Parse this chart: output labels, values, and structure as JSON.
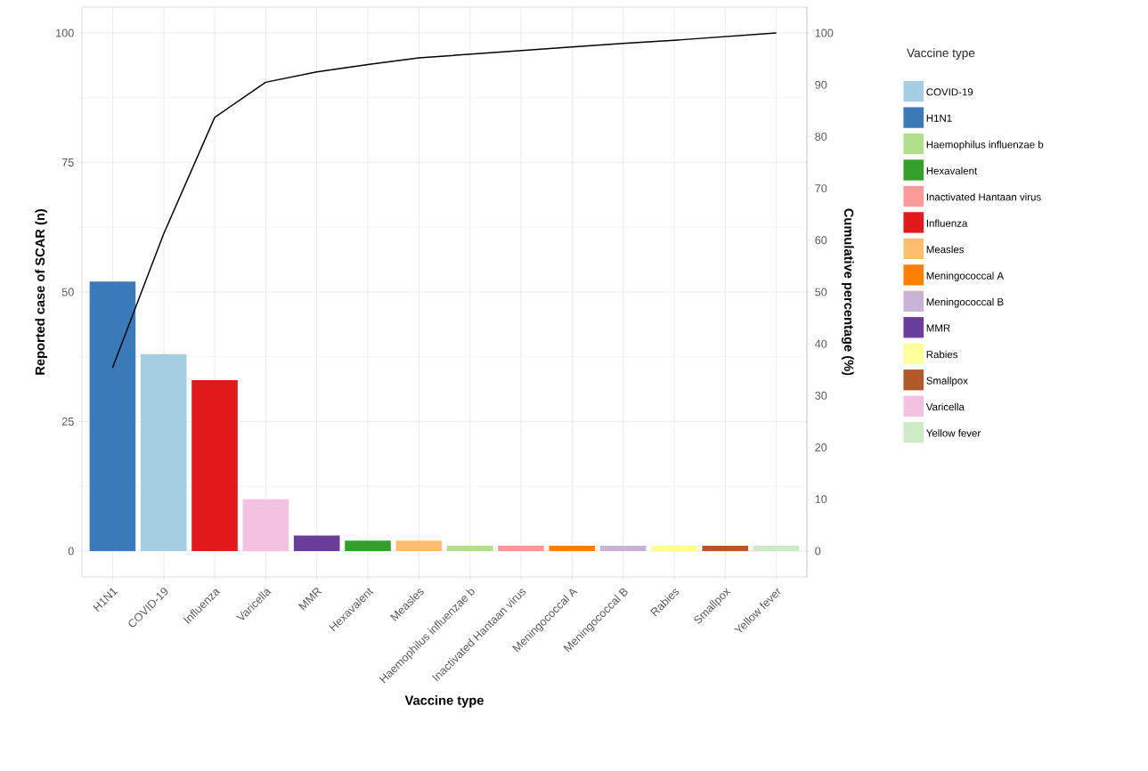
{
  "chart_data": {
    "type": "bar",
    "xlabel": "Vaccine type",
    "ylabel": "Reported case of SCAR (n)",
    "y2label": "Cumulative percentage (%)",
    "legend_title": "Vaccine type",
    "legend": "right",
    "grid": true,
    "categories": [
      "H1N1",
      "COVID-19",
      "Influenza",
      "Varicella",
      "MMR",
      "Hexavalent",
      "Measles",
      "Haemophilus influenzae b",
      "Inactivated Hantaan virus",
      "Meningococcal A",
      "Meningococcal B",
      "Rabies",
      "Smallpox",
      "Yellow fever"
    ],
    "ylim": [
      -5,
      105
    ],
    "yticks": [
      0,
      25,
      50,
      75,
      100
    ],
    "y2lim": [
      -5,
      105
    ],
    "y2ticks": [
      0,
      10,
      20,
      30,
      40,
      50,
      60,
      70,
      80,
      90,
      100
    ],
    "series": [
      {
        "name": "COVID-19",
        "color": "#a6cee3",
        "values": [
          null,
          38,
          null,
          null,
          null,
          null,
          null,
          null,
          null,
          null,
          null,
          null,
          null,
          null
        ]
      },
      {
        "name": "H1N1",
        "color": "#3a7ab8",
        "values": [
          52,
          null,
          null,
          null,
          null,
          null,
          null,
          null,
          null,
          null,
          null,
          null,
          null,
          null
        ]
      },
      {
        "name": "Haemophilus influenzae b",
        "color": "#b2df8a",
        "values": [
          null,
          null,
          null,
          null,
          null,
          null,
          null,
          1,
          null,
          null,
          null,
          null,
          null,
          null
        ]
      },
      {
        "name": "Hexavalent",
        "color": "#33a02c",
        "values": [
          null,
          null,
          null,
          null,
          null,
          2,
          null,
          null,
          null,
          null,
          null,
          null,
          null,
          null
        ]
      },
      {
        "name": "Inactivated Hantaan virus",
        "color": "#fb9a99",
        "values": [
          null,
          null,
          null,
          null,
          null,
          null,
          null,
          null,
          1,
          null,
          null,
          null,
          null,
          null
        ]
      },
      {
        "name": "Influenza",
        "color": "#e31a1c",
        "values": [
          null,
          null,
          33,
          null,
          null,
          null,
          null,
          null,
          null,
          null,
          null,
          null,
          null,
          null
        ]
      },
      {
        "name": "Measles",
        "color": "#fdbf6f",
        "values": [
          null,
          null,
          null,
          null,
          null,
          null,
          2,
          null,
          null,
          null,
          null,
          null,
          null,
          null
        ]
      },
      {
        "name": "Meningococcal A",
        "color": "#ff7f00",
        "values": [
          null,
          null,
          null,
          null,
          null,
          null,
          null,
          null,
          null,
          1,
          null,
          null,
          null,
          null
        ]
      },
      {
        "name": "Meningococcal B",
        "color": "#cab2d6",
        "values": [
          null,
          null,
          null,
          null,
          null,
          null,
          null,
          null,
          null,
          null,
          1,
          null,
          null,
          null
        ]
      },
      {
        "name": "MMR",
        "color": "#6a3d9a",
        "values": [
          null,
          null,
          null,
          null,
          3,
          null,
          null,
          null,
          null,
          null,
          null,
          null,
          null,
          null
        ]
      },
      {
        "name": "Rabies",
        "color": "#ffff99",
        "values": [
          null,
          null,
          null,
          null,
          null,
          null,
          null,
          null,
          null,
          null,
          null,
          1,
          null,
          null
        ]
      },
      {
        "name": "Smallpox",
        "color": "#b15928",
        "values": [
          null,
          null,
          null,
          null,
          null,
          null,
          null,
          null,
          null,
          null,
          null,
          null,
          1,
          null
        ]
      },
      {
        "name": "Varicella",
        "color": "#f4c2e0",
        "values": [
          null,
          null,
          null,
          10,
          null,
          null,
          null,
          null,
          null,
          null,
          null,
          null,
          null,
          null
        ]
      },
      {
        "name": "Yellow fever",
        "color": "#ccebc5",
        "values": [
          null,
          null,
          null,
          null,
          null,
          null,
          null,
          null,
          null,
          null,
          null,
          null,
          null,
          1
        ]
      },
      {
        "type": "line",
        "axis": "y2",
        "color": "#000000",
        "values": [
          35.4,
          61.2,
          83.7,
          90.5,
          92.5,
          93.9,
          95.2,
          95.9,
          96.6,
          97.3,
          98.0,
          98.6,
          99.3,
          100
        ]
      }
    ]
  }
}
